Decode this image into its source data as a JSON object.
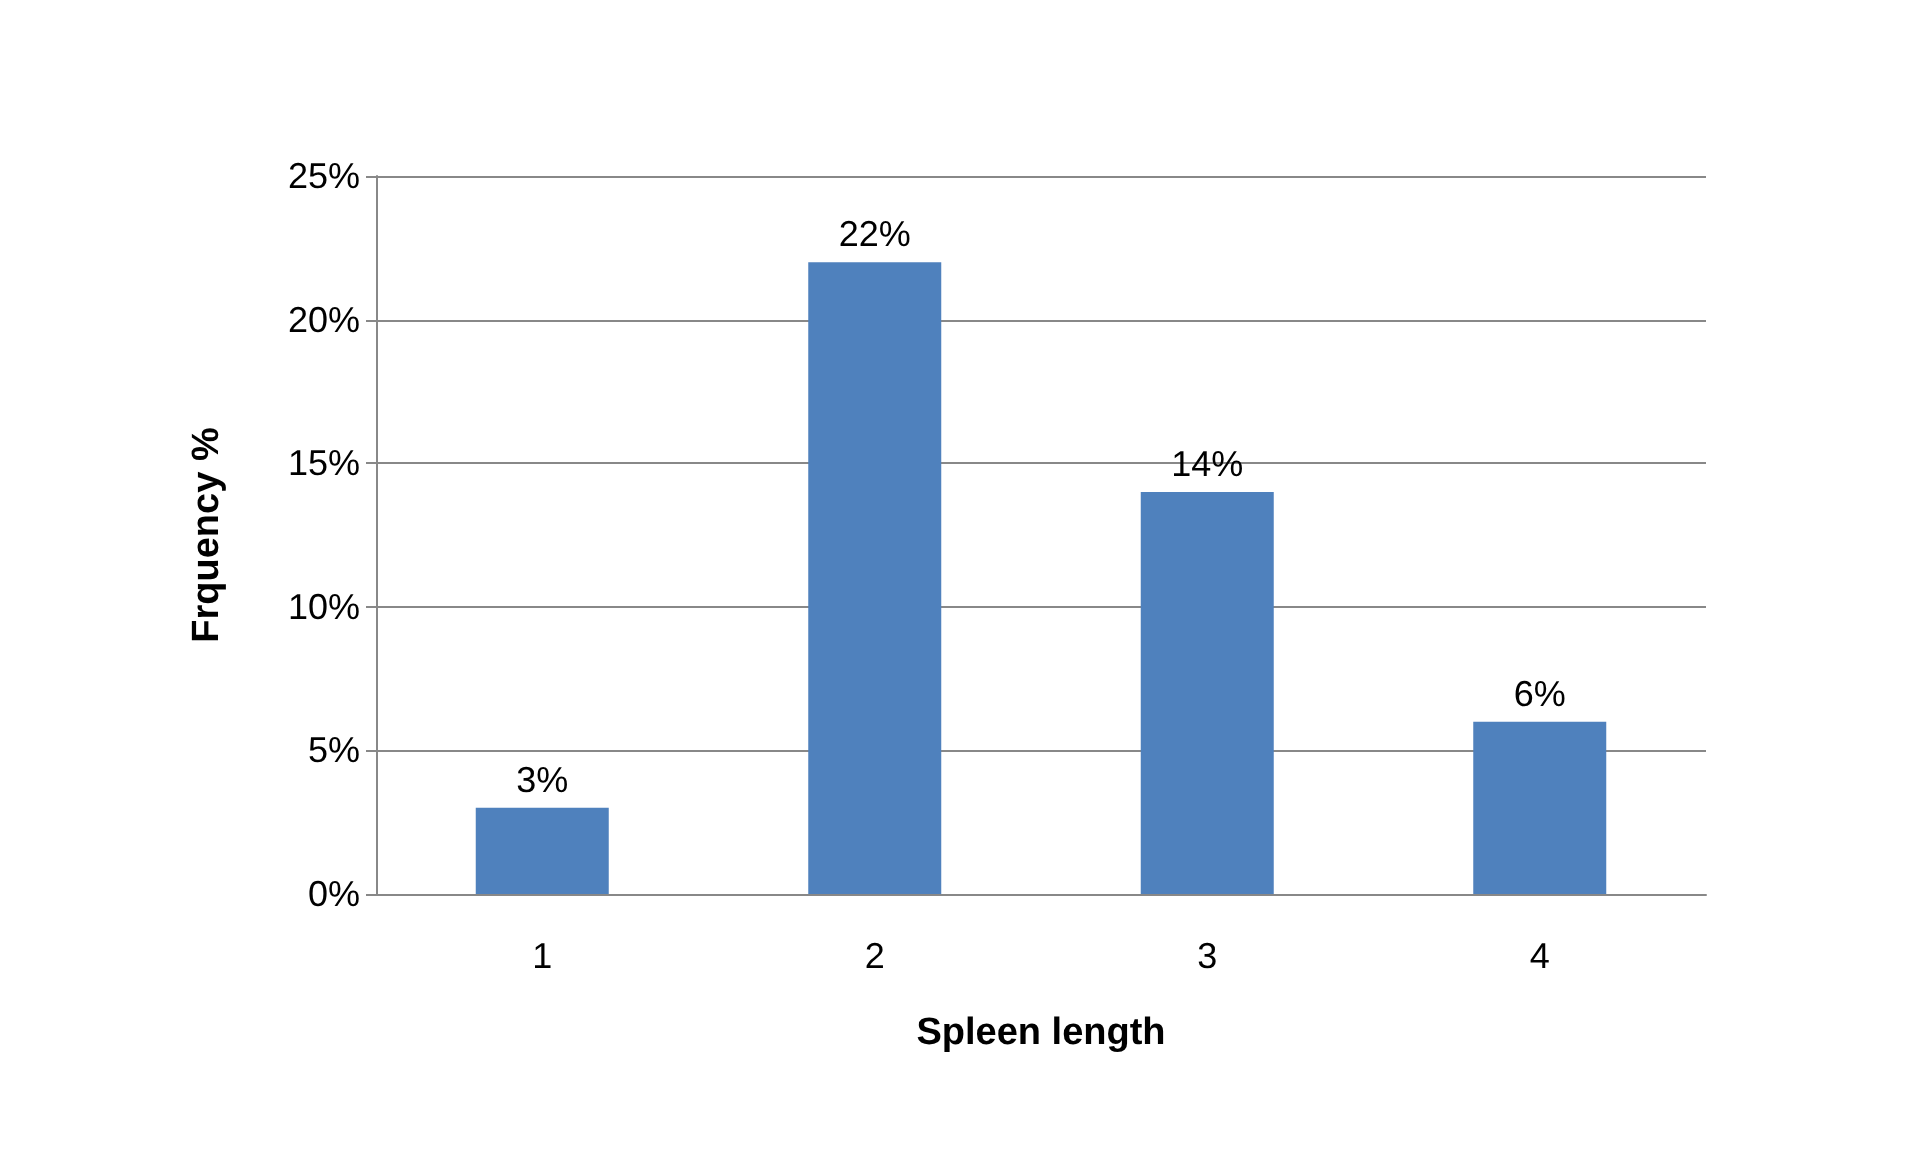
{
  "chart_data": {
    "type": "bar",
    "xlabel": "Spleen length",
    "ylabel": "Frquency %",
    "categories": [
      "1",
      "2",
      "3",
      "4"
    ],
    "values": [
      3,
      22,
      14,
      6
    ],
    "value_labels": [
      "3%",
      "22%",
      "14%",
      "6%"
    ],
    "color": "#4f81bd",
    "ylim": [
      0,
      25
    ],
    "yticks": [
      {
        "value": 0,
        "label": "0%"
      },
      {
        "value": 5,
        "label": "5%"
      },
      {
        "value": 10,
        "label": "10%"
      },
      {
        "value": 15,
        "label": "15%"
      },
      {
        "value": 20,
        "label": "20%"
      },
      {
        "value": 25,
        "label": "25%"
      }
    ],
    "grid": "y"
  }
}
